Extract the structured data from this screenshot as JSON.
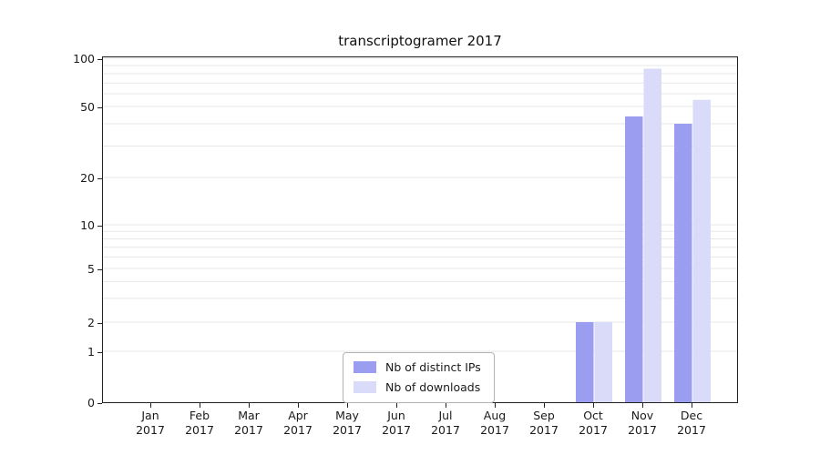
{
  "title": "transcriptogramer 2017",
  "legend": {
    "items": [
      {
        "label": "Nb of distinct IPs",
        "color": "#9b9df0"
      },
      {
        "label": "Nb of downloads",
        "color": "#dadbf9"
      }
    ]
  },
  "chart_data": {
    "type": "bar",
    "title": "transcriptogramer 2017",
    "categories": [
      "Jan 2017",
      "Feb 2017",
      "Mar 2017",
      "Apr 2017",
      "May 2017",
      "Jun 2017",
      "Jul 2017",
      "Aug 2017",
      "Sep 2017",
      "Oct 2017",
      "Nov 2017",
      "Dec 2017"
    ],
    "series": [
      {
        "name": "Nb of distinct IPs",
        "color": "#9b9df0",
        "values": [
          0,
          0,
          0,
          0,
          0,
          0,
          0,
          0,
          0,
          2,
          44,
          40
        ]
      },
      {
        "name": "Nb of downloads",
        "color": "#dadbf9",
        "values": [
          0,
          0,
          0,
          0,
          0,
          0,
          0,
          0,
          0,
          2,
          86,
          55
        ]
      }
    ],
    "yscale": "symlog",
    "ylim": [
      0,
      100
    ],
    "yticks": [
      0,
      1,
      2,
      5,
      10,
      20,
      50,
      100
    ],
    "minor_yticks": [
      3,
      4,
      6,
      7,
      8,
      9,
      30,
      40,
      60,
      70,
      80,
      90
    ],
    "grid": "horizontal",
    "grid_color": "#e7e7e7",
    "legend_position": "lower center inside"
  }
}
